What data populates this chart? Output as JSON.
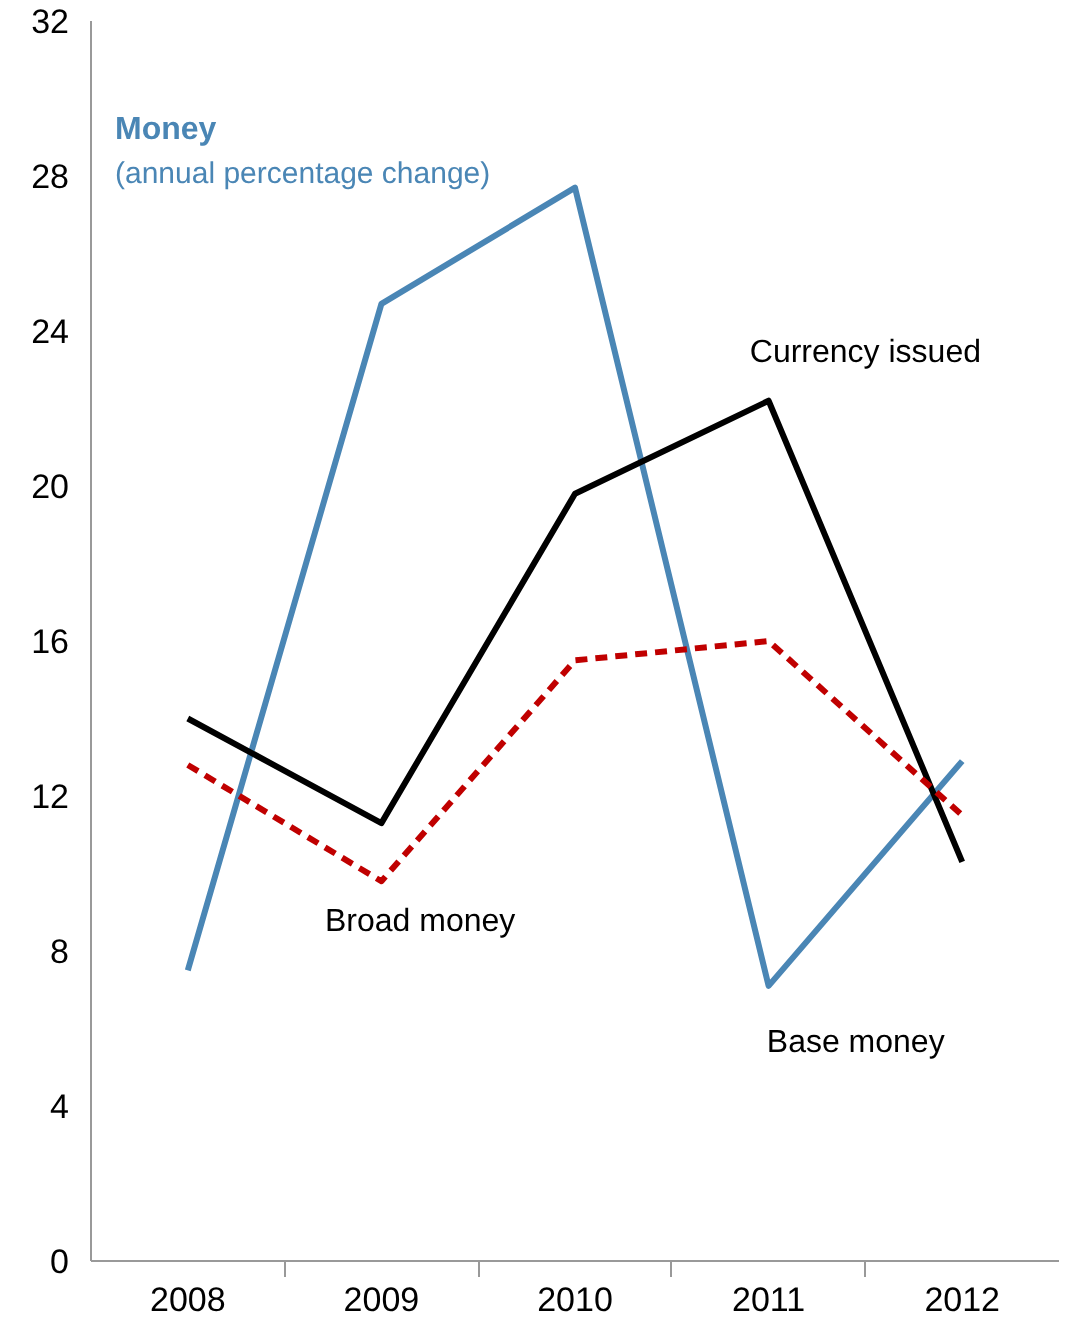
{
  "chart_data": {
    "type": "line",
    "title": "Money",
    "subtitle": "(annual percentage  change)",
    "categories": [
      "2008",
      "2009",
      "2010",
      "2011",
      "2012"
    ],
    "ylim": [
      0,
      32
    ],
    "yticks": [
      0,
      4,
      8,
      12,
      16,
      20,
      24,
      28,
      32
    ],
    "grid": false,
    "marker": "none",
    "series": [
      {
        "name": "Base money",
        "color": "#4a86b5",
        "line_style": "solid",
        "values": [
          7.5,
          24.7,
          27.7,
          7.1,
          12.9
        ]
      },
      {
        "name": "Currency issued",
        "color": "#000000",
        "line_style": "solid",
        "values": [
          14.0,
          11.3,
          19.8,
          22.2,
          10.3
        ]
      },
      {
        "name": "Broad money",
        "color": "#c00000",
        "line_style": "dashed",
        "values": [
          12.8,
          9.8,
          15.5,
          16.0,
          11.5
        ]
      }
    ]
  }
}
